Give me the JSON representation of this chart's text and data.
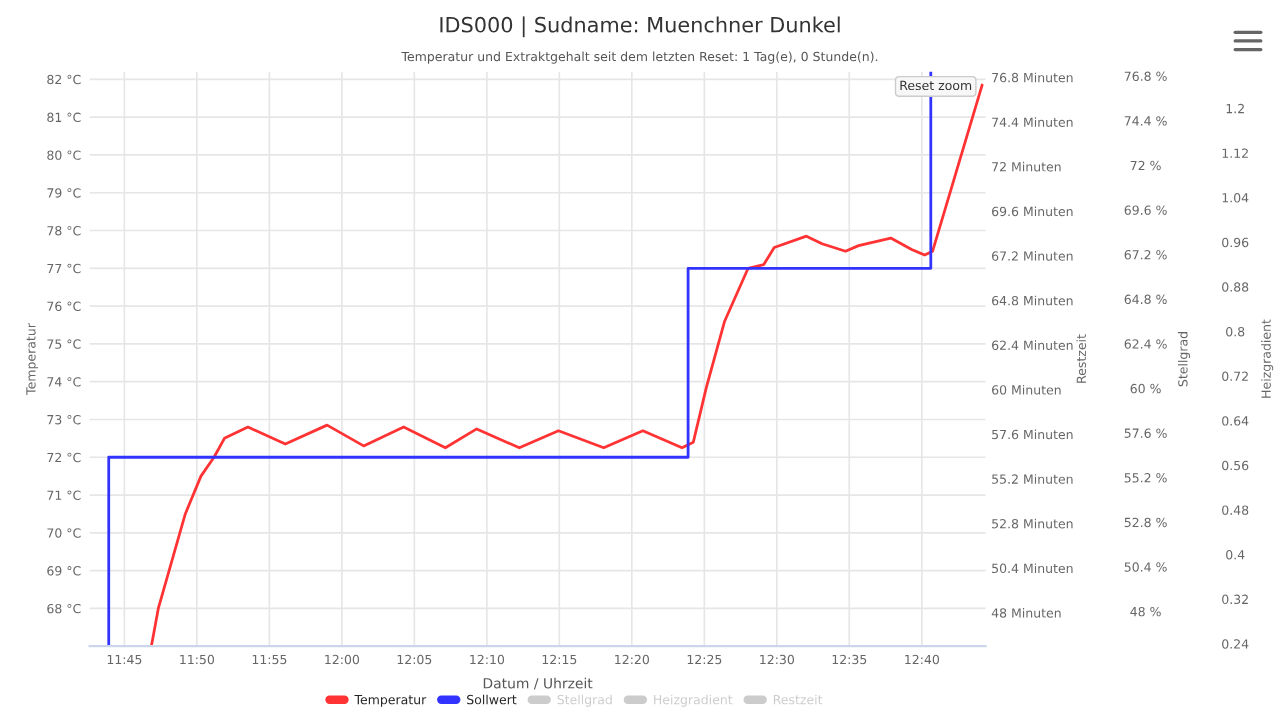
{
  "chart_data": {
    "type": "line",
    "title": "IDS000 | Sudname: Muenchner Dunkel",
    "subtitle": "Temperatur und Extraktgehalt seit dem letzten Reset: 1 Tag(e), 0 Stunde(n).",
    "xlabel": "Datum / Uhrzeit",
    "ylabel": "Temperatur",
    "y2label": "Restzeit",
    "annotations": [
      "Reset zoom",
      "Stellgrad",
      "76.8 %",
      "74.4 %",
      "72 %",
      "69.6 %",
      "67.2 %",
      "64.8 %",
      "62.4 %",
      "60 %",
      "57.6 %",
      "55.2 %",
      "52.8 %",
      "50.4 %",
      "48 %",
      "Heizgradient",
      "1.2",
      "1.12",
      "1.04",
      "0.96",
      "0.88",
      "0.8",
      "0.72",
      "0.64",
      "0.56",
      "0.48",
      "0.4",
      "0.32",
      "0.24"
    ],
    "xlim": [
      11.71,
      12.74
    ],
    "xticks": [
      {
        "value": 11.75,
        "label": "11:45"
      },
      {
        "value": 11.8333,
        "label": "11:50"
      },
      {
        "value": 11.9167,
        "label": "11:55"
      },
      {
        "value": 12.0,
        "label": "12:00"
      },
      {
        "value": 12.0833,
        "label": "12:05"
      },
      {
        "value": 12.1667,
        "label": "12:10"
      },
      {
        "value": 12.25,
        "label": "12:15"
      },
      {
        "value": 12.3333,
        "label": "12:20"
      },
      {
        "value": 12.4167,
        "label": "12:25"
      },
      {
        "value": 12.5,
        "label": "12:30"
      },
      {
        "value": 12.5833,
        "label": "12:35"
      },
      {
        "value": 12.6667,
        "label": "12:40"
      }
    ],
    "ylim": [
      67.0,
      82.2
    ],
    "yticks": [
      {
        "value": 68,
        "label": "68 °C"
      },
      {
        "value": 69,
        "label": "69 °C"
      },
      {
        "value": 70,
        "label": "70 °C"
      },
      {
        "value": 71,
        "label": "71 °C"
      },
      {
        "value": 72,
        "label": "72 °C"
      },
      {
        "value": 73,
        "label": "73 °C"
      },
      {
        "value": 74,
        "label": "74 °C"
      },
      {
        "value": 75,
        "label": "75 °C"
      },
      {
        "value": 76,
        "label": "76 °C"
      },
      {
        "value": 77,
        "label": "77 °C"
      },
      {
        "value": 78,
        "label": "78 °C"
      },
      {
        "value": 79,
        "label": "79 °C"
      },
      {
        "value": 80,
        "label": "80 °C"
      },
      {
        "value": 81,
        "label": "81 °C"
      },
      {
        "value": 82,
        "label": "82 °C"
      }
    ],
    "y2lim": [
      46.2,
      77.1
    ],
    "y2ticks": [
      {
        "value": 48,
        "label": "48 Minuten"
      },
      {
        "value": 50.4,
        "label": "50.4 Minuten"
      },
      {
        "value": 52.8,
        "label": "52.8 Minuten"
      },
      {
        "value": 55.2,
        "label": "55.2 Minuten"
      },
      {
        "value": 57.6,
        "label": "57.6 Minuten"
      },
      {
        "value": 60,
        "label": "60 Minuten"
      },
      {
        "value": 62.4,
        "label": "62.4 Minuten"
      },
      {
        "value": 64.8,
        "label": "64.8 Minuten"
      },
      {
        "value": 67.2,
        "label": "67.2 Minuten"
      },
      {
        "value": 69.6,
        "label": "69.6 Minuten"
      },
      {
        "value": 72,
        "label": "72 Minuten"
      },
      {
        "value": 74.4,
        "label": "74.4 Minuten"
      },
      {
        "value": 76.8,
        "label": "76.8 Minuten"
      }
    ],
    "grid": true,
    "legend": "bottom",
    "marker": "none",
    "line_style": "solid",
    "series": [
      {
        "name": "Temperatur",
        "color": "#ff3333",
        "x": [
          11.781,
          11.789,
          11.82,
          11.838,
          11.853,
          11.865,
          11.892,
          11.935,
          11.983,
          12.025,
          12.071,
          12.119,
          12.155,
          12.204,
          12.249,
          12.301,
          12.346,
          12.391,
          12.404,
          12.419,
          12.44,
          12.467,
          12.485,
          12.497,
          12.534,
          12.552,
          12.579,
          12.594,
          12.631,
          12.655,
          12.67,
          12.679,
          12.703,
          12.736
        ],
        "values": [
          67.0,
          68.0,
          70.5,
          71.5,
          72.0,
          72.5,
          72.8,
          72.35,
          72.85,
          72.3,
          72.8,
          72.25,
          72.75,
          72.25,
          72.7,
          72.25,
          72.7,
          72.25,
          72.4,
          73.85,
          75.6,
          77.0,
          77.1,
          77.55,
          77.85,
          77.65,
          77.45,
          77.6,
          77.8,
          77.5,
          77.35,
          77.45,
          79.3,
          81.85
        ]
      },
      {
        "name": "Sollwert",
        "color": "#3333ff",
        "x": [
          11.732,
          11.732,
          12.398,
          12.398,
          12.677,
          12.677
        ],
        "values": [
          67.0,
          72,
          72,
          77,
          77,
          82.2
        ]
      },
      {
        "name": "Stellgrad",
        "color": "#cccccc"
      },
      {
        "name": "Heizgradient",
        "color": "#cccccc"
      },
      {
        "name": "Restzeit",
        "color": "#cccccc"
      }
    ]
  }
}
